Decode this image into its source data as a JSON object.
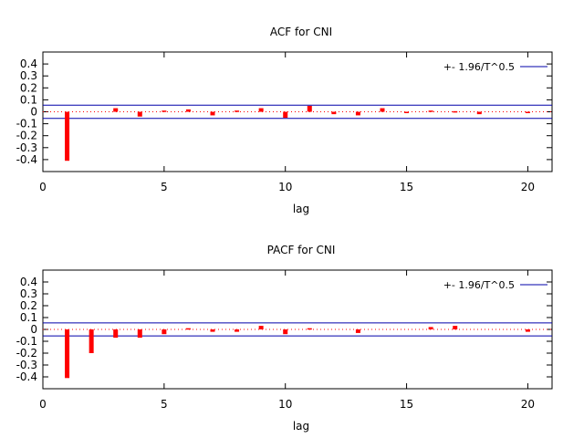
{
  "chart_data": [
    {
      "type": "bar",
      "title": "ACF for CNI",
      "xlabel": "lag",
      "ylabel": "",
      "xlim": [
        0,
        21
      ],
      "ylim": [
        -0.5,
        0.5
      ],
      "xticks": [
        0,
        5,
        10,
        15,
        20
      ],
      "yticks": [
        -0.4,
        -0.3,
        -0.2,
        -0.1,
        0,
        0.1,
        0.2,
        0.3,
        0.4
      ],
      "grid": false,
      "legend": {
        "position": "top-right",
        "entries": [
          "+- 1.96/T^0.5"
        ]
      },
      "confidence_band": 0.055,
      "bar_color": "#ff0000",
      "band_color": "#0000aa",
      "zero_line_color": "#ff0000",
      "series": [
        {
          "x": [
            1,
            2,
            3,
            4,
            5,
            6,
            7,
            8,
            9,
            10,
            11,
            12,
            13,
            14,
            15,
            16,
            17,
            18,
            19,
            20
          ],
          "values": [
            -0.41,
            0.0,
            0.03,
            -0.04,
            0.01,
            0.02,
            -0.03,
            0.01,
            0.03,
            -0.05,
            0.05,
            -0.02,
            -0.03,
            0.03,
            -0.01,
            0.01,
            0.005,
            -0.02,
            0.0,
            -0.01
          ]
        }
      ]
    },
    {
      "type": "bar",
      "title": "PACF for CNI",
      "xlabel": "lag",
      "ylabel": "",
      "xlim": [
        0,
        21
      ],
      "ylim": [
        -0.5,
        0.5
      ],
      "xticks": [
        0,
        5,
        10,
        15,
        20
      ],
      "yticks": [
        -0.4,
        -0.3,
        -0.2,
        -0.1,
        0,
        0.1,
        0.2,
        0.3,
        0.4
      ],
      "grid": false,
      "legend": {
        "position": "top-right",
        "entries": [
          "+- 1.96/T^0.5"
        ]
      },
      "confidence_band": 0.055,
      "bar_color": "#ff0000",
      "band_color": "#0000aa",
      "zero_line_color": "#ff0000",
      "series": [
        {
          "x": [
            1,
            2,
            3,
            4,
            5,
            6,
            7,
            8,
            9,
            10,
            11,
            12,
            13,
            14,
            15,
            16,
            17,
            18,
            19,
            20
          ],
          "values": [
            -0.41,
            -0.2,
            -0.07,
            -0.07,
            -0.04,
            0.01,
            -0.02,
            -0.02,
            0.03,
            -0.04,
            0.01,
            0.0,
            -0.03,
            0.0,
            0.0,
            0.02,
            0.03,
            0.0,
            0.0,
            -0.02
          ]
        }
      ]
    }
  ]
}
